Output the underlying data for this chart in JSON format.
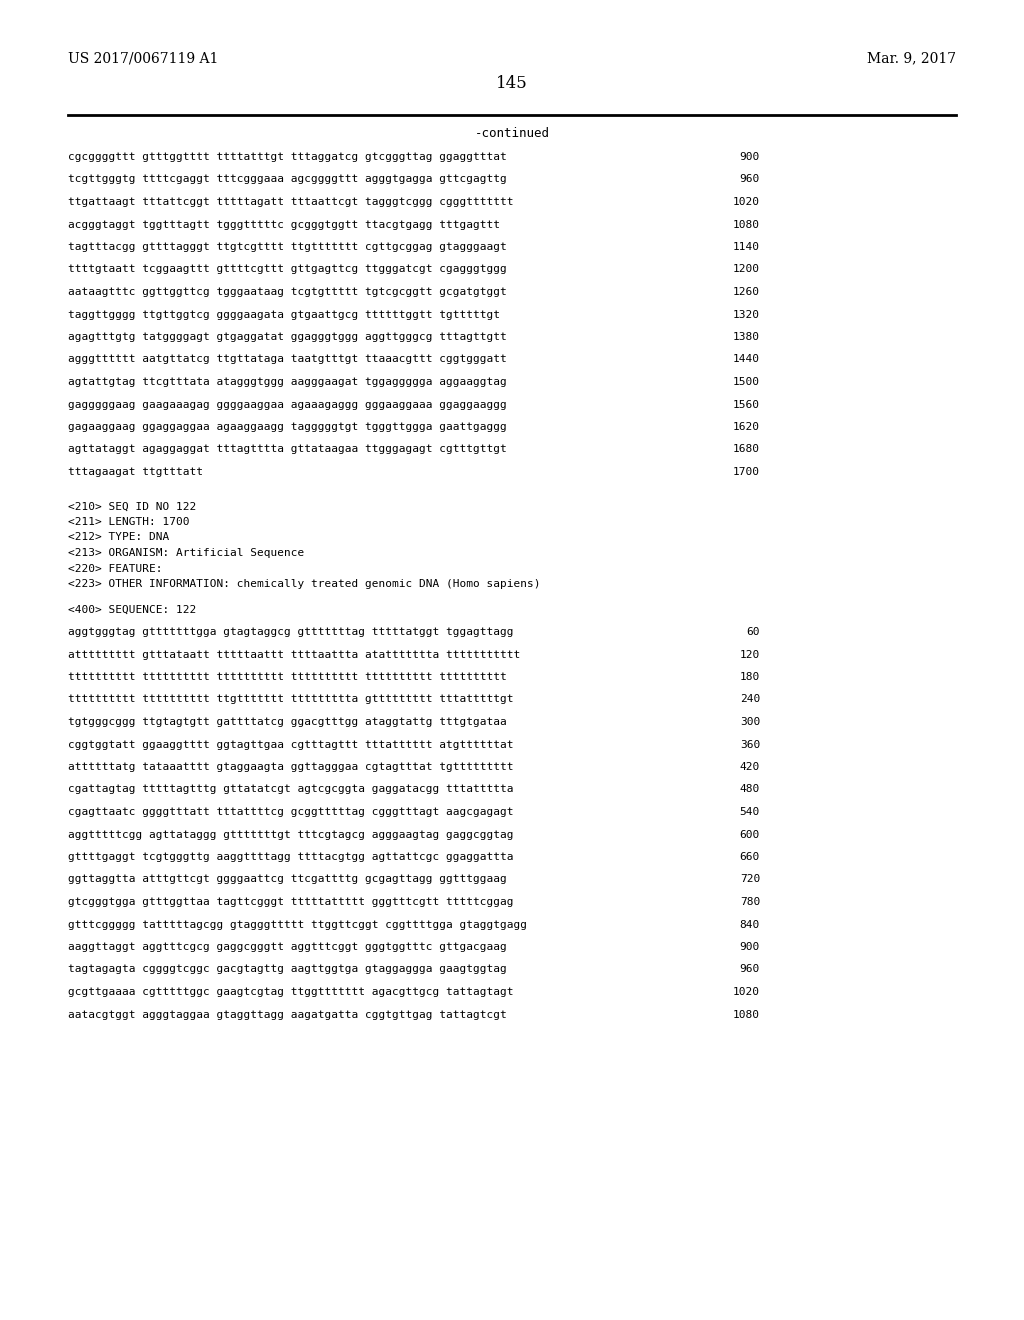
{
  "header_left": "US 2017/0067119 A1",
  "header_right": "Mar. 9, 2017",
  "page_number": "145",
  "continued_label": "-continued",
  "background_color": "#ffffff",
  "text_color": "#000000",
  "sequence_lines_top": [
    [
      "cgcggggttt gtttggtttt ttttatttgt tttaggatcg gtcgggttag ggaggtttat",
      "900"
    ],
    [
      "tcgttgggtg ttttcgaggt tttcgggaaa agcggggttt agggtgagga gttcgagttg",
      "960"
    ],
    [
      "ttgattaagt tttattcggt tttttagatt tttaattcgt tagggtcggg cgggttttttt",
      "1020"
    ],
    [
      "acgggtaggt tggtttagtt tgggtttttc gcgggtggtt ttacgtgagg tttgagttt",
      "1080"
    ],
    [
      "tagtttacgg gttttagggt ttgtcgtttt ttgttttttt cgttgcggag gtagggaagt",
      "1140"
    ],
    [
      "ttttgtaatt tcggaagttt gttttcgttt gttgagttcg ttgggatcgt cgagggtggg",
      "1200"
    ],
    [
      "aataagtttc ggttggttcg tgggaataag tcgtgttttt tgtcgcggtt gcgatgtggt",
      "1260"
    ],
    [
      "taggttgggg ttgttggtcg ggggaagata gtgaattgcg ttttttggtt tgtttttgt",
      "1320"
    ],
    [
      "agagtttgtg tatggggagt gtgaggatat ggagggtggg aggttgggcg tttagttgtt",
      "1380"
    ],
    [
      "agggtttttt aatgttatcg ttgttataga taatgtttgt ttaaacgttt cggtgggatt",
      "1440"
    ],
    [
      "agtattgtag ttcgtttata atagggtggg aagggaagat tggaggggga aggaaggtag",
      "1500"
    ],
    [
      "gagggggaag gaagaaagag ggggaaggaa agaaagaggg gggaaggaaa ggaggaaggg",
      "1560"
    ],
    [
      "gagaaggaag ggaggaggaa agaaggaagg tagggggtgt tgggttggga gaattgaggg",
      "1620"
    ],
    [
      "agttataggt agaggaggat tttagtttta gttataagaa ttgggagagt cgtttgttgt",
      "1680"
    ],
    [
      "tttagaagat ttgtttatt",
      "1700"
    ]
  ],
  "metadata_lines": [
    "<210> SEQ ID NO 122",
    "<211> LENGTH: 1700",
    "<212> TYPE: DNA",
    "<213> ORGANISM: Artificial Sequence",
    "<220> FEATURE:",
    "<223> OTHER INFORMATION: chemically treated genomic DNA (Homo sapiens)"
  ],
  "sequence_label": "<400> SEQUENCE: 122",
  "sequence_lines_bottom": [
    [
      "aggtgggtag gtttttttgga gtagtaggcg gtttttttag tttttatggt tggagttagg",
      "60"
    ],
    [
      "attttttttt gtttataatt tttttaattt ttttaattta atattttttta ttttttttttt",
      "120"
    ],
    [
      "tttttttttt tttttttttt tttttttttt tttttttttt tttttttttt tttttttttt",
      "180"
    ],
    [
      "tttttttttt tttttttttt ttgttttttt ttttttttta gttttttttt tttatttttgt",
      "240"
    ],
    [
      "tgtgggcggg ttgtagtgtt gattttatcg ggacgtttgg ataggtattg tttgtgataa",
      "300"
    ],
    [
      "cggtggtatt ggaaggtttt ggtagttgaa cgtttagttt tttatttttt atgttttttat",
      "360"
    ],
    [
      "attttttatg tataaatttt gtaggaagta ggttagggaa cgtagtttat tgttttttttt",
      "420"
    ],
    [
      "cgattagtag tttttagtttg gttatatcgt agtcgcggta gaggatacgg tttattttta",
      "480"
    ],
    [
      "cgagttaatc ggggtttatt tttattttcg gcggtttttag cgggtttagt aagcgagagt",
      "540"
    ],
    [
      "aggtttttcgg agttataggg gtttttttgt tttcgtagcg agggaagtag gaggcggtag",
      "600"
    ],
    [
      "gttttgaggt tcgtgggttg aaggttttagg ttttacgtgg agttattcgc ggaggattta",
      "660"
    ],
    [
      "ggttaggtta atttgttcgt ggggaattcg ttcgattttg gcgagttagg ggtttggaag",
      "720"
    ],
    [
      "gtcgggtgga gtttggttaa tagttcgggt tttttattttt gggtttcgtt tttttcggag",
      "780"
    ],
    [
      "gtttcggggg tatttttagcgg gtagggttttt ttggttcggt cggttttgga gtaggtgagg",
      "840"
    ],
    [
      "aaggttaggt aggtttcgcg gaggcgggtt aggtttcggt gggtggtttc gttgacgaag",
      "900"
    ],
    [
      "tagtagagta cggggtcggc gacgtagttg aagttggtga gtaggaggga gaagtggtag",
      "960"
    ],
    [
      "gcgttgaaaa cgtttttggc gaagtcgtag ttggttttttt agacgttgcg tattagtagt",
      "1020"
    ],
    [
      "aatacgtggt agggtaggaa gtaggttagg aagatgatta cggtgttgag tattagtcgt",
      "1080"
    ]
  ]
}
